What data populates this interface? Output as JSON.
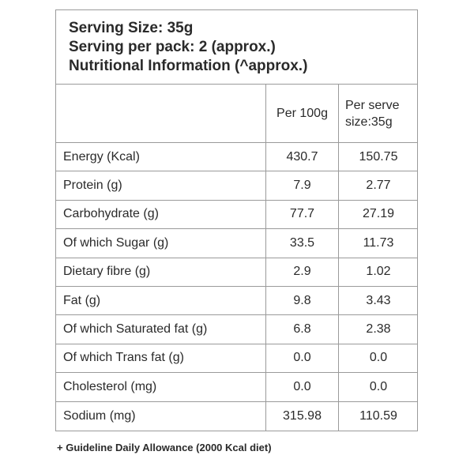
{
  "header": {
    "serving_size": "Serving Size: 35g",
    "servings_per_pack": "Serving per pack: 2 (approx.)",
    "title": "Nutritional Information (^approx.)"
  },
  "table": {
    "columns": [
      "",
      "Per 100g",
      "Per serve size:35g"
    ],
    "column_per_serve_line1": "Per serve",
    "column_per_serve_line2": "size:35g",
    "rows": [
      {
        "label": "Energy (Kcal)",
        "per100": "430.7",
        "perServe": "150.75"
      },
      {
        "label": "Protein (g)",
        "per100": "7.9",
        "perServe": "2.77"
      },
      {
        "label": "Carbohydrate (g)",
        "per100": "77.7",
        "perServe": "27.19"
      },
      {
        "label": "Of which Sugar (g)",
        "per100": "33.5",
        "perServe": "11.73"
      },
      {
        "label": "Dietary fibre (g)",
        "per100": "2.9",
        "perServe": "1.02"
      },
      {
        "label": "Fat (g)",
        "per100": "9.8",
        "perServe": "3.43"
      },
      {
        "label": "Of which Saturated fat (g)",
        "per100": "6.8",
        "perServe": "2.38"
      },
      {
        "label": "Of which Trans fat (g)",
        "per100": "0.0",
        "perServe": "0.0"
      },
      {
        "label": "Cholesterol (mg)",
        "per100": "0.0",
        "perServe": "0.0"
      },
      {
        "label": "Sodium (mg)",
        "per100": "315.98",
        "perServe": "110.59"
      }
    ]
  },
  "footnote": "+ Guideline Daily Allowance (2000 Kcal diet)",
  "colors": {
    "text": "#2a2a2a",
    "border": "#9a9a9a",
    "background": "#ffffff"
  }
}
